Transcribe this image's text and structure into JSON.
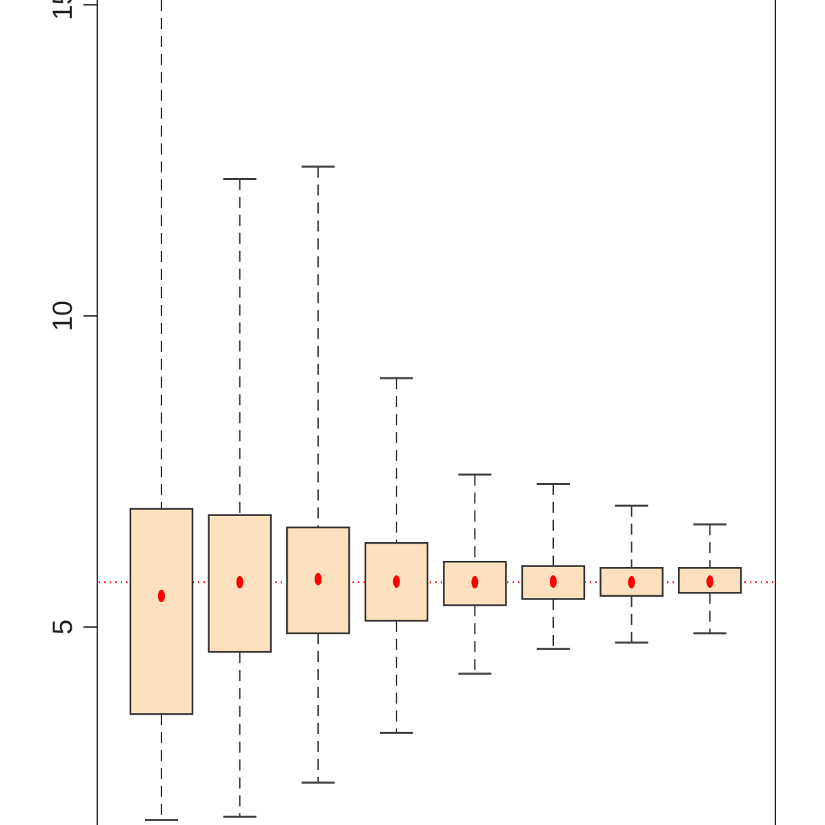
{
  "chart_data": {
    "type": "boxplot",
    "title": "",
    "xlabel": "",
    "ylabel": "",
    "ylim": [
      1.9,
      15.1
    ],
    "y_ticks": [
      {
        "value": 5,
        "label": "5"
      },
      {
        "value": 10,
        "label": "10"
      },
      {
        "value": 15,
        "label": "15"
      }
    ],
    "reference_line": {
      "value": 5.72,
      "style": "dotted",
      "color": "#ff0000"
    },
    "box_fill": "#fde0bd",
    "box_stroke": "#333333",
    "mean_color": "#ff0000",
    "boxes": [
      {
        "whisker_low": 1.9,
        "q1": 3.6,
        "q3": 6.9,
        "whisker_high": 15.1,
        "mean": 5.5
      },
      {
        "whisker_low": 1.95,
        "q1": 4.6,
        "q3": 6.8,
        "whisker_high": 12.2,
        "mean": 5.72
      },
      {
        "whisker_low": 2.5,
        "q1": 4.9,
        "q3": 6.6,
        "whisker_high": 12.4,
        "mean": 5.77
      },
      {
        "whisker_low": 3.3,
        "q1": 5.1,
        "q3": 6.35,
        "whisker_high": 9.0,
        "mean": 5.73
      },
      {
        "whisker_low": 4.25,
        "q1": 5.35,
        "q3": 6.05,
        "whisker_high": 7.45,
        "mean": 5.72
      },
      {
        "whisker_low": 4.65,
        "q1": 5.45,
        "q3": 5.98,
        "whisker_high": 7.3,
        "mean": 5.73
      },
      {
        "whisker_low": 4.75,
        "q1": 5.5,
        "q3": 5.95,
        "whisker_high": 6.95,
        "mean": 5.72
      },
      {
        "whisker_low": 4.9,
        "q1": 5.55,
        "q3": 5.95,
        "whisker_high": 6.65,
        "mean": 5.73
      }
    ]
  }
}
